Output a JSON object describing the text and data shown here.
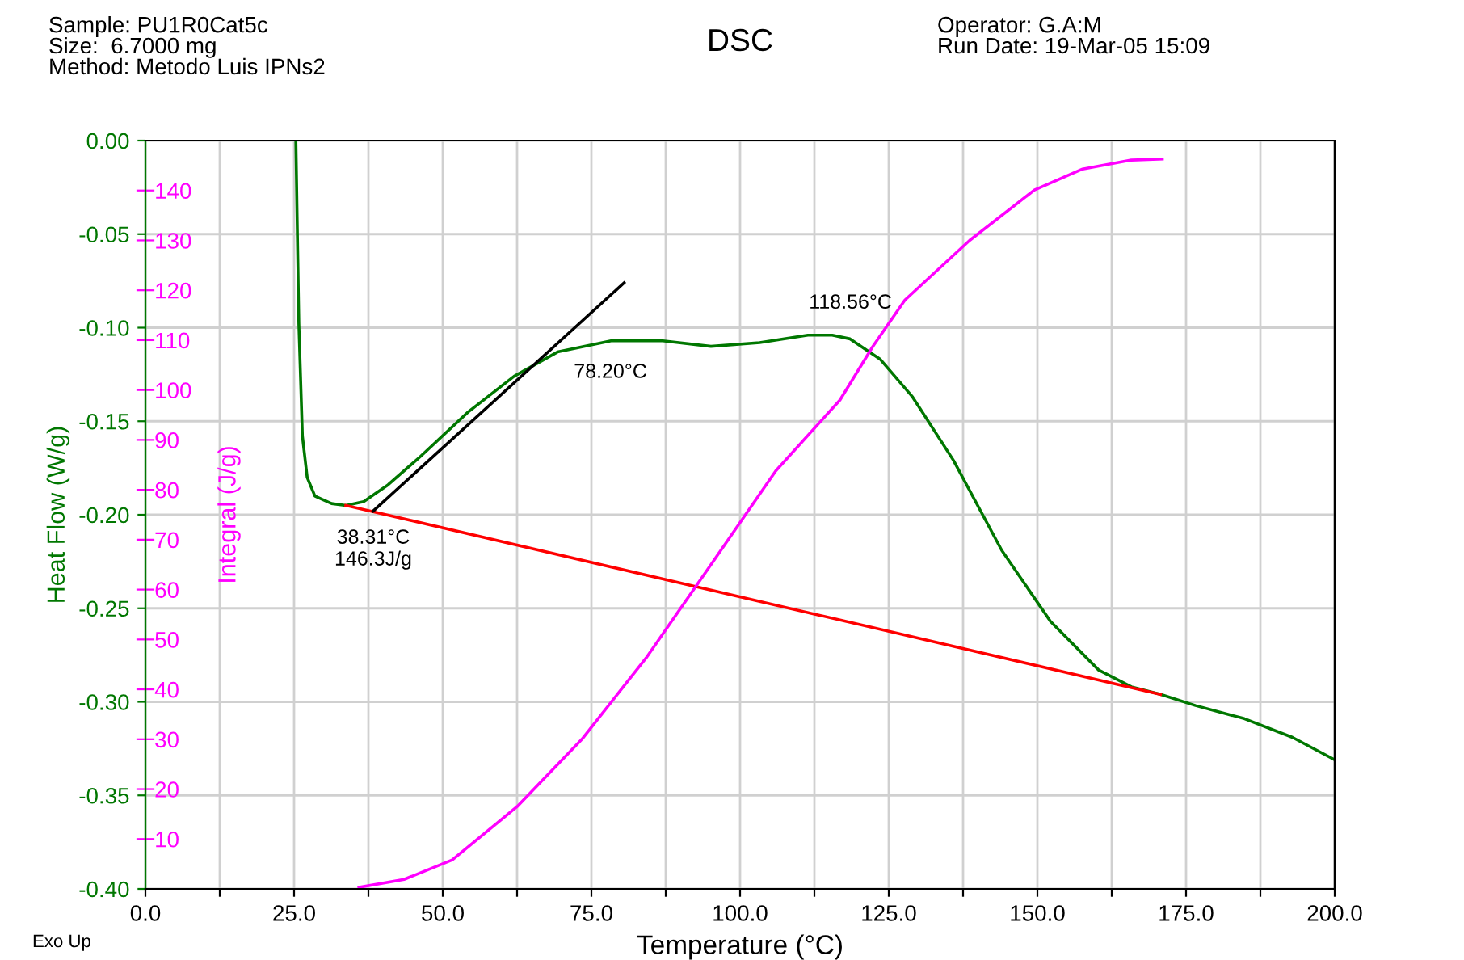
{
  "chart_data": {
    "type": "line",
    "title": "DSC",
    "xlabel": "Temperature (°C)",
    "ylabel": "Heat Flow (W/g)",
    "y2label": "Integral (J/g)",
    "xlim": [
      0,
      200
    ],
    "xticks": [
      {
        "value": 0,
        "label": "0.0"
      },
      {
        "value": 12.5,
        "label": null
      },
      {
        "value": 25,
        "label": "25.0"
      },
      {
        "value": 37.5,
        "label": null
      },
      {
        "value": 50,
        "label": "50.0"
      },
      {
        "value": 62.5,
        "label": null
      },
      {
        "value": 75,
        "label": "75.0"
      },
      {
        "value": 87.5,
        "label": null
      },
      {
        "value": 100,
        "label": "100.0"
      },
      {
        "value": 112.5,
        "label": null
      },
      {
        "value": 125,
        "label": "125.0"
      },
      {
        "value": 137.5,
        "label": null
      },
      {
        "value": 150,
        "label": "150.0"
      },
      {
        "value": 162.5,
        "label": null
      },
      {
        "value": 175,
        "label": "175.0"
      },
      {
        "value": 187.5,
        "label": null
      },
      {
        "value": 200,
        "label": "200.0"
      }
    ],
    "ylim": [
      -0.4,
      0
    ],
    "yticks": [
      {
        "value": -0.4,
        "label": "-0.40"
      },
      {
        "value": -0.35,
        "label": "-0.35"
      },
      {
        "value": -0.3,
        "label": "-0.30"
      },
      {
        "value": -0.25,
        "label": "-0.25"
      },
      {
        "value": -0.2,
        "label": "-0.20"
      },
      {
        "value": -0.15,
        "label": "-0.15"
      },
      {
        "value": -0.1,
        "label": "-0.10"
      },
      {
        "value": -0.05,
        "label": "-0.05"
      },
      {
        "value": 0,
        "label": "0.00"
      }
    ],
    "y2lim": [
      0,
      150
    ],
    "y2ticks": [
      10,
      20,
      30,
      40,
      50,
      60,
      70,
      80,
      90,
      100,
      110,
      120,
      130,
      140
    ],
    "grid": true,
    "series": [
      {
        "color": "#007700",
        "axis": "y",
        "x": [
          25.3,
          25.8,
          26.4,
          27.2,
          28.5,
          31.3,
          33.7,
          36.7,
          40.8,
          46.2,
          54.3,
          62,
          69.3,
          78.3,
          87,
          95.1,
          103.3,
          111.4,
          115.5,
          118.5,
          123.6,
          129,
          135.9,
          144,
          152.2,
          160.3,
          165.8,
          170.7,
          176.6,
          184.8,
          192.9,
          200
        ],
        "values": [
          0.0,
          -0.098,
          -0.158,
          -0.18,
          -0.19,
          -0.194,
          -0.195,
          -0.193,
          -0.184,
          -0.169,
          -0.145,
          -0.126,
          -0.113,
          -0.107,
          -0.107,
          -0.11,
          -0.108,
          -0.104,
          -0.104,
          -0.106,
          -0.117,
          -0.137,
          -0.171,
          -0.219,
          -0.257,
          -0.283,
          -0.292,
          -0.296,
          -0.302,
          -0.309,
          -0.319,
          -0.331
        ]
      },
      {
        "color": "#ff00ff",
        "axis": "y2",
        "x": [
          35.9,
          43.5,
          51.6,
          62.5,
          73.4,
          84.2,
          95.1,
          106,
          116.8,
          122.3,
          127.7,
          138.6,
          149.5,
          157.6,
          165.8,
          171
        ],
        "values": [
          0.3,
          1.9,
          5.8,
          16.5,
          30,
          46.3,
          65,
          83.8,
          98,
          108.7,
          118,
          130,
          140.1,
          144.3,
          146.1,
          146.3
        ]
      },
      {
        "color": "#ff0000",
        "axis": "y",
        "x": [
          33.7,
          170.7
        ],
        "values": [
          -0.195,
          -0.296
        ]
      },
      {
        "color": "#000000",
        "axis": "y",
        "x": [
          38.3,
          80.5
        ],
        "values": [
          -0.198,
          -0.076
        ]
      }
    ],
    "annotations": [
      {
        "text": "38.31°C\n146.3J/g",
        "x": 38.31,
        "y": -0.198
      },
      {
        "text": "78.20°C",
        "x": 78.2,
        "y": -0.107
      },
      {
        "text": "118.56°C",
        "x": 118.56,
        "y": -0.104
      },
      "Sample: PU1R0Cat5c\nSize:  6.7000 mg\nMethod: Metodo Luis IPNs2",
      "Operator: G.A:M\nRun Date: 19-Mar-05 15:09",
      "Exo Up"
    ]
  }
}
